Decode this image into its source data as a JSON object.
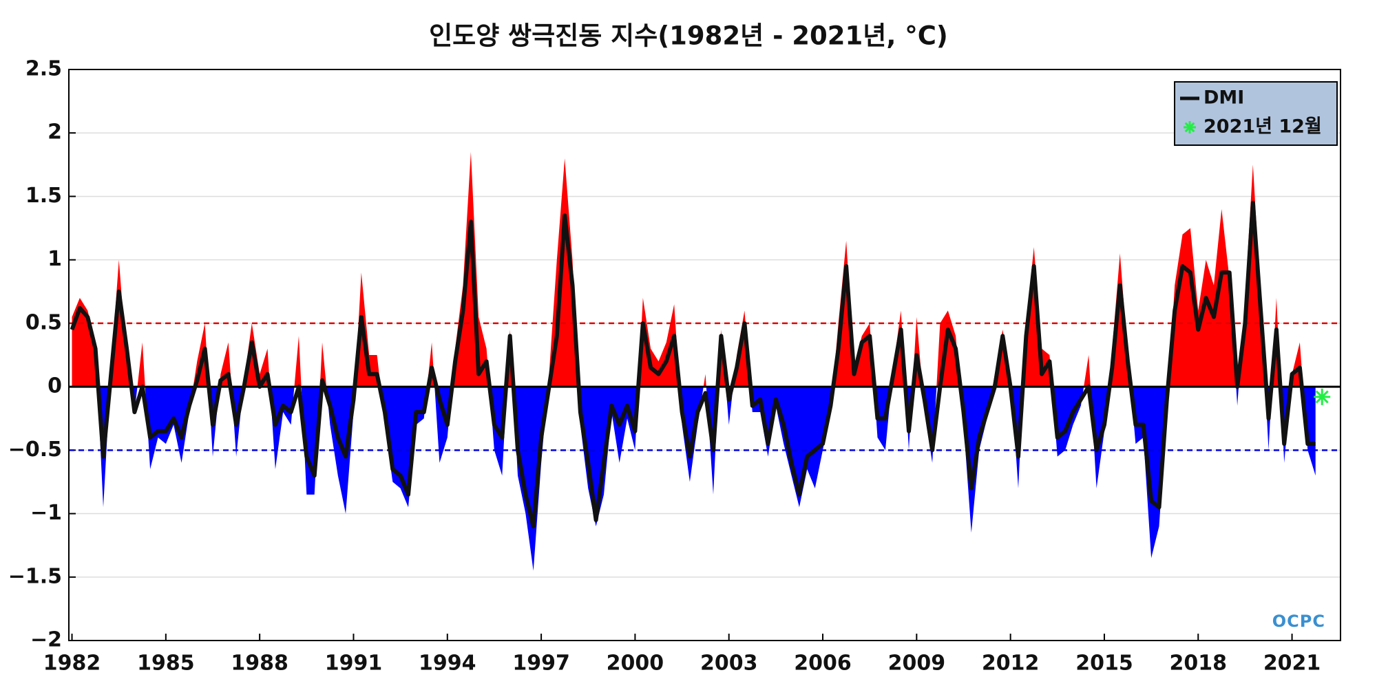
{
  "chart_data": {
    "type": "line",
    "title": "인도양 쌍극진동 지수(1982년 - 2021년, °C)",
    "logo": "OCPC",
    "xlim": [
      1981.9,
      2022.55
    ],
    "xticks": [
      1982,
      1985,
      1988,
      1991,
      1994,
      1997,
      2000,
      2003,
      2006,
      2009,
      2012,
      2015,
      2018,
      2021
    ],
    "ylim": [
      -2,
      2.5
    ],
    "yticks": [
      {
        "value": -2,
        "label": "−2"
      },
      {
        "value": -1.5,
        "label": "−1.5"
      },
      {
        "value": -1,
        "label": "−1"
      },
      {
        "value": -0.5,
        "label": "−0.5"
      },
      0,
      0.5,
      1,
      1.5,
      2,
      2.5
    ],
    "grid": true,
    "legend": "upper right",
    "hlines": [
      {
        "value": 0.5,
        "color": "#e00000"
      },
      {
        "value": -0.5,
        "color": "#0000e0"
      }
    ],
    "area": {
      "positive_color": "#ff0000",
      "negative_color": "#0000ff",
      "x": [
        1982,
        1982.25,
        1982.5,
        1982.75,
        1983,
        1983.25,
        1983.5,
        1983.75,
        1984,
        1984.25,
        1984.5,
        1984.75,
        1985,
        1985.25,
        1985.5,
        1985.75,
        1986,
        1986.25,
        1986.5,
        1986.75,
        1987,
        1987.25,
        1987.5,
        1987.75,
        1988,
        1988.25,
        1988.5,
        1988.75,
        1989,
        1989.25,
        1989.5,
        1989.75,
        1990,
        1990.25,
        1990.5,
        1990.75,
        1991,
        1991.25,
        1991.5,
        1991.75,
        1992,
        1992.25,
        1992.5,
        1992.75,
        1993,
        1993.25,
        1993.5,
        1993.75,
        1994,
        1994.25,
        1994.5,
        1994.75,
        1995,
        1995.25,
        1995.5,
        1995.75,
        1996,
        1996.25,
        1996.5,
        1996.75,
        1997,
        1997.25,
        1997.5,
        1997.75,
        1998,
        1998.25,
        1998.5,
        1998.75,
        1999,
        1999.25,
        1999.5,
        1999.75,
        2000,
        2000.25,
        2000.5,
        2000.75,
        2001,
        2001.25,
        2001.5,
        2001.75,
        2002,
        2002.25,
        2002.5,
        2002.75,
        2003,
        2003.25,
        2003.5,
        2003.75,
        2004,
        2004.25,
        2004.5,
        2004.75,
        2005,
        2005.25,
        2005.5,
        2005.75,
        2006,
        2006.25,
        2006.5,
        2006.75,
        2007,
        2007.25,
        2007.5,
        2007.75,
        2008,
        2008.25,
        2008.5,
        2008.75,
        2009,
        2009.25,
        2009.5,
        2009.75,
        2010,
        2010.25,
        2010.5,
        2010.75,
        2011,
        2011.25,
        2011.5,
        2011.75,
        2012,
        2012.25,
        2012.5,
        2012.75,
        2013,
        2013.25,
        2013.5,
        2013.75,
        2014,
        2014.25,
        2014.5,
        2014.75,
        2015,
        2015.25,
        2015.5,
        2015.75,
        2016,
        2016.25,
        2016.5,
        2016.75,
        2017,
        2017.25,
        2017.5,
        2017.75,
        2018,
        2018.25,
        2018.5,
        2018.75,
        2019,
        2019.25,
        2019.5,
        2019.75,
        2020,
        2020.25,
        2020.5,
        2020.75,
        2021,
        2021.25,
        2021.5,
        2021.75
      ],
      "values": [
        0.55,
        0.7,
        0.6,
        0.35,
        -0.95,
        0.15,
        1.0,
        0.2,
        -0.2,
        0.35,
        -0.65,
        -0.4,
        -0.45,
        -0.3,
        -0.6,
        -0.2,
        0.2,
        0.5,
        -0.55,
        0.1,
        0.35,
        -0.55,
        0.05,
        0.5,
        0.1,
        0.3,
        -0.65,
        -0.2,
        -0.3,
        0.4,
        -0.85,
        -0.85,
        0.35,
        -0.3,
        -0.7,
        -1.0,
        -0.2,
        0.9,
        0.25,
        0.25,
        -0.3,
        -0.75,
        -0.8,
        -0.95,
        -0.3,
        -0.25,
        0.35,
        -0.6,
        -0.4,
        0.3,
        0.8,
        1.85,
        0.55,
        0.3,
        -0.5,
        -0.7,
        0.45,
        -0.7,
        -1.0,
        -1.45,
        -0.6,
        0.1,
        1.0,
        1.8,
        1.0,
        -0.3,
        -0.8,
        -1.1,
        -0.85,
        -0.2,
        -0.6,
        -0.25,
        -0.5,
        0.7,
        0.3,
        0.2,
        0.35,
        0.65,
        -0.3,
        -0.75,
        -0.3,
        0.1,
        -0.85,
        0.45,
        -0.3,
        0.25,
        0.6,
        -0.2,
        -0.2,
        -0.55,
        -0.15,
        -0.45,
        -0.7,
        -0.95,
        -0.65,
        -0.8,
        -0.5,
        -0.2,
        0.5,
        1.15,
        0.15,
        0.4,
        0.5,
        -0.4,
        -0.5,
        0.15,
        0.6,
        -0.5,
        0.55,
        -0.2,
        -0.6,
        0.5,
        0.6,
        0.4,
        -0.3,
        -1.15,
        -0.5,
        -0.25,
        0.1,
        0.45,
        0.1,
        -0.8,
        0.5,
        1.1,
        0.3,
        0.25,
        -0.55,
        -0.5,
        -0.3,
        -0.15,
        0.25,
        -0.8,
        -0.35,
        0.3,
        1.05,
        0.25,
        -0.45,
        -0.4,
        -1.35,
        -1.1,
        -0.2,
        0.8,
        1.2,
        1.25,
        0.6,
        1.0,
        0.8,
        1.4,
        0.85,
        -0.15,
        0.7,
        1.75,
        0.7,
        -0.5,
        0.7,
        -0.6,
        0.1,
        0.35,
        -0.5,
        -0.7
      ]
    },
    "series": [
      {
        "name": "DMI",
        "color": "#111111",
        "x": [
          1982,
          1982.25,
          1982.5,
          1982.75,
          1983,
          1983.25,
          1983.5,
          1983.75,
          1984,
          1984.25,
          1984.5,
          1984.75,
          1985,
          1985.25,
          1985.5,
          1985.75,
          1986,
          1986.25,
          1986.5,
          1986.75,
          1987,
          1987.25,
          1987.5,
          1987.75,
          1988,
          1988.25,
          1988.5,
          1988.75,
          1989,
          1989.25,
          1989.5,
          1989.75,
          1990,
          1990.25,
          1990.5,
          1990.75,
          1991,
          1991.25,
          1991.5,
          1991.75,
          1992,
          1992.25,
          1992.5,
          1992.75,
          1993,
          1993.25,
          1993.5,
          1993.75,
          1994,
          1994.25,
          1994.5,
          1994.75,
          1995,
          1995.25,
          1995.5,
          1995.75,
          1996,
          1996.25,
          1996.5,
          1996.75,
          1997,
          1997.25,
          1997.5,
          1997.75,
          1998,
          1998.25,
          1998.5,
          1998.75,
          1999,
          1999.25,
          1999.5,
          1999.75,
          2000,
          2000.25,
          2000.5,
          2000.75,
          2001,
          2001.25,
          2001.5,
          2001.75,
          2002,
          2002.25,
          2002.5,
          2002.75,
          2003,
          2003.25,
          2003.5,
          2003.75,
          2004,
          2004.25,
          2004.5,
          2004.75,
          2005,
          2005.25,
          2005.5,
          2005.75,
          2006,
          2006.25,
          2006.5,
          2006.75,
          2007,
          2007.25,
          2007.5,
          2007.75,
          2008,
          2008.25,
          2008.5,
          2008.75,
          2009,
          2009.25,
          2009.5,
          2009.75,
          2010,
          2010.25,
          2010.5,
          2010.75,
          2011,
          2011.25,
          2011.5,
          2011.75,
          2012,
          2012.25,
          2012.5,
          2012.75,
          2013,
          2013.25,
          2013.5,
          2013.75,
          2014,
          2014.25,
          2014.5,
          2014.75,
          2015,
          2015.25,
          2015.5,
          2015.75,
          2016,
          2016.25,
          2016.5,
          2016.75,
          2017,
          2017.25,
          2017.5,
          2017.75,
          2018,
          2018.25,
          2018.5,
          2018.75,
          2019,
          2019.25,
          2019.5,
          2019.75,
          2020,
          2020.25,
          2020.5,
          2020.75,
          2021,
          2021.25,
          2021.5,
          2021.75
        ],
        "values": [
          0.45,
          0.62,
          0.55,
          0.3,
          -0.55,
          0.1,
          0.75,
          0.3,
          -0.2,
          0.0,
          -0.4,
          -0.35,
          -0.35,
          -0.25,
          -0.4,
          -0.15,
          0.05,
          0.3,
          -0.3,
          0.05,
          0.1,
          -0.3,
          0.0,
          0.35,
          0.0,
          0.1,
          -0.3,
          -0.15,
          -0.2,
          0.0,
          -0.55,
          -0.7,
          0.05,
          -0.15,
          -0.4,
          -0.55,
          -0.1,
          0.55,
          0.1,
          0.1,
          -0.2,
          -0.65,
          -0.7,
          -0.85,
          -0.2,
          -0.2,
          0.15,
          -0.1,
          -0.3,
          0.2,
          0.6,
          1.3,
          0.1,
          0.2,
          -0.3,
          -0.4,
          0.4,
          -0.5,
          -0.85,
          -1.1,
          -0.4,
          0.0,
          0.4,
          1.35,
          0.8,
          -0.2,
          -0.6,
          -1.05,
          -0.6,
          -0.15,
          -0.3,
          -0.15,
          -0.35,
          0.5,
          0.15,
          0.1,
          0.2,
          0.4,
          -0.2,
          -0.55,
          -0.2,
          -0.05,
          -0.5,
          0.4,
          -0.1,
          0.15,
          0.5,
          -0.15,
          -0.1,
          -0.45,
          -0.1,
          -0.3,
          -0.6,
          -0.85,
          -0.55,
          -0.5,
          -0.45,
          -0.15,
          0.3,
          0.95,
          0.1,
          0.35,
          0.4,
          -0.25,
          -0.25,
          0.1,
          0.45,
          -0.35,
          0.25,
          -0.1,
          -0.5,
          0.0,
          0.45,
          0.3,
          -0.2,
          -0.8,
          -0.4,
          -0.2,
          0.0,
          0.4,
          0.0,
          -0.55,
          0.4,
          0.95,
          0.1,
          0.2,
          -0.4,
          -0.35,
          -0.2,
          -0.1,
          0.0,
          -0.5,
          -0.3,
          0.15,
          0.8,
          0.2,
          -0.3,
          -0.3,
          -0.9,
          -0.95,
          -0.1,
          0.6,
          0.95,
          0.9,
          0.45,
          0.7,
          0.55,
          0.9,
          0.9,
          0.0,
          0.5,
          1.45,
          0.6,
          -0.25,
          0.45,
          -0.45,
          0.1,
          0.15,
          -0.45,
          -0.45
        ]
      },
      {
        "name": "2021년 12월",
        "color": "#22ee44",
        "marker": "star",
        "x": [
          2021.96
        ],
        "values": [
          -0.08
        ]
      }
    ]
  }
}
